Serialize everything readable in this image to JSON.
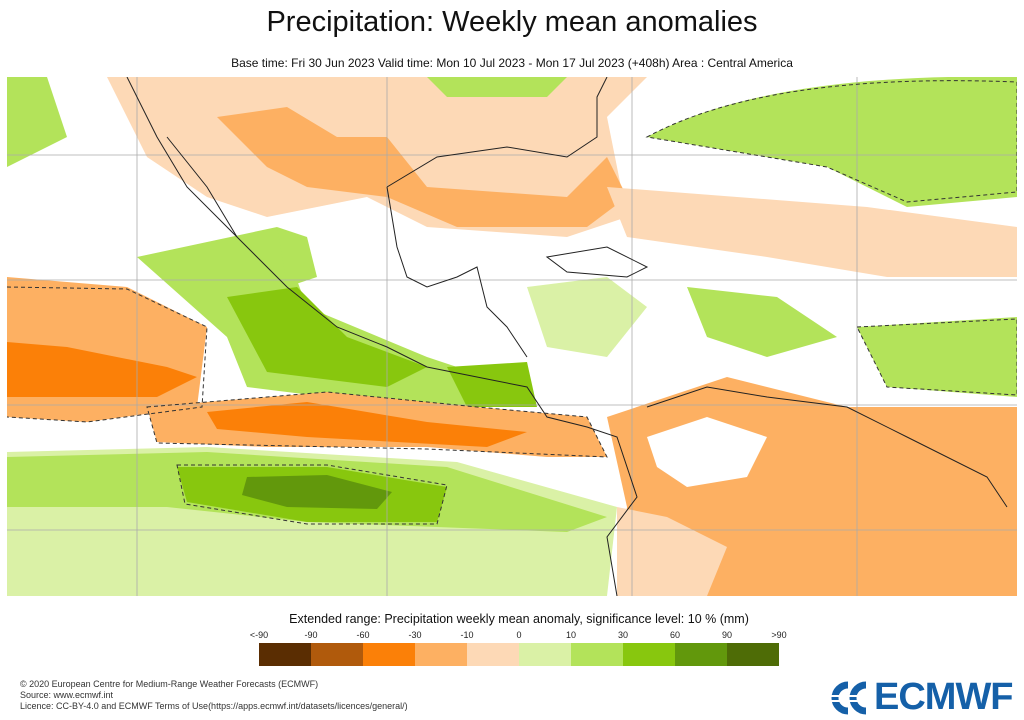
{
  "title": "Precipitation: Weekly mean anomalies",
  "subtitle": "Base time: Fri 30 Jun 2023 Valid time: Mon 10 Jul 2023 - Mon 17 Jul 2023 (+408h) Area : Central America",
  "map": {
    "area": "Central America",
    "variable": "Precipitation weekly mean anomaly"
  },
  "legend": {
    "title": "Extended range: Precipitation weekly mean anomaly, significance level: 10 % (mm)",
    "labels": [
      "<-90",
      "-90",
      "-60",
      "-30",
      "-10",
      "0",
      "10",
      "30",
      "60",
      "90",
      ">90"
    ],
    "colors": [
      "#5a2d02",
      "#b05a0c",
      "#fb8008",
      "#fdb062",
      "#fdd9b6",
      "#daf1a6",
      "#b3e35a",
      "#88c70e",
      "#62980c",
      "#4e6c06"
    ]
  },
  "footer": {
    "copyright": "© 2020 European Centre for Medium-Range Weather Forecasts (ECMWF)",
    "source": "Source: www.ecmwf.int",
    "licence": "Licence: CC-BY-4.0 and ECMWF Terms of Use(https://apps.ecmwf.int/datasets/licences/general/)"
  },
  "logo": {
    "text": "ECMWF",
    "color": "#1560a8"
  }
}
